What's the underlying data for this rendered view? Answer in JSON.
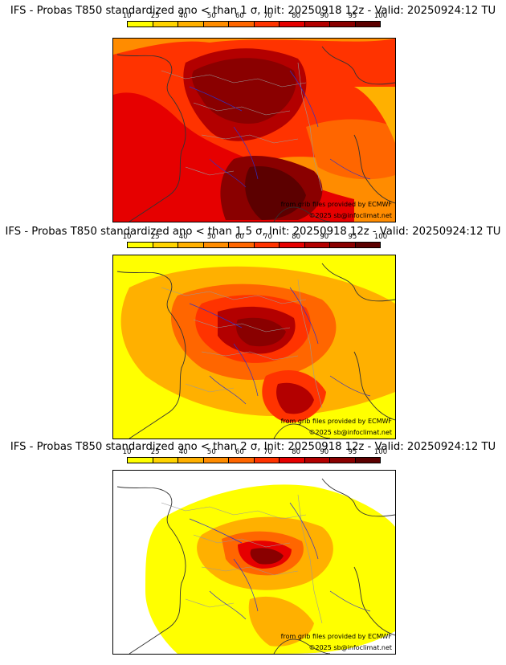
{
  "colors": {
    "scale": [
      "#ffff00",
      "#ffd400",
      "#ffb000",
      "#ff8c00",
      "#ff6600",
      "#ff3300",
      "#e60000",
      "#b30000",
      "#8a0000",
      "#5c0000"
    ],
    "coast": "#333333",
    "borders": "#9a9a9a",
    "rivers": "#3030c8"
  },
  "legend": {
    "ticks": [
      "10",
      "25",
      "40",
      "50",
      "60",
      "70",
      "80",
      "90",
      "95",
      "100"
    ]
  },
  "credits": {
    "source": "from grib files provided by ECMWF",
    "copyright": "©2025 sb@infoclimat.net"
  },
  "panels": [
    {
      "title": "IFS - Probas T850  standardized ano < than 1 σ, Init: 20250918 12z - Valid: 20250924:12 TU",
      "intensity": 3
    },
    {
      "title": "IFS - Probas T850  standardized ano < than 1.5 σ, Init: 20250918 12z - Valid: 20250924:12 TU",
      "intensity": 2
    },
    {
      "title": "IFS - Probas T850  standardized ano < than 2 σ, Init: 20250918 12z - Valid: 20250924:12 TU",
      "intensity": 1
    }
  ]
}
